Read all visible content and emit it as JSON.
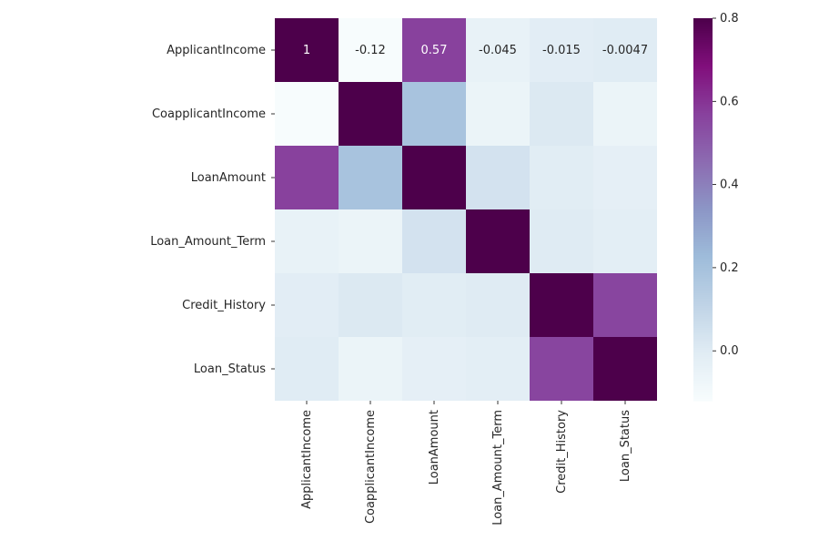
{
  "chart_data": {
    "type": "heatmap",
    "colormap": "BuPu",
    "categories": [
      "ApplicantIncome",
      "CoapplicantIncome",
      "LoanAmount",
      "Loan_Amount_Term",
      "Credit_History",
      "Loan_Status"
    ],
    "matrix": [
      [
        1,
        -0.12,
        0.57,
        -0.045,
        -0.015,
        -0.0047
      ],
      [
        -0.12,
        1,
        0.19,
        -0.06,
        0.01,
        -0.06
      ],
      [
        0.57,
        0.19,
        1,
        0.04,
        -0.01,
        -0.03
      ],
      [
        -0.045,
        -0.06,
        0.04,
        1,
        0.0,
        -0.02
      ],
      [
        -0.015,
        0.01,
        -0.01,
        0.0,
        1,
        0.56
      ],
      [
        -0.0047,
        -0.06,
        -0.03,
        -0.02,
        0.56,
        1
      ]
    ],
    "first_row_labels": [
      "1",
      "-0.12",
      "0.57",
      "-0.045",
      "-0.015",
      "-0.0047"
    ],
    "vmin": -0.12,
    "vmax": 0.8,
    "colorbar_ticks": [
      0.8,
      0.6,
      0.4,
      0.2,
      0.0
    ],
    "colorbar_tick_labels": [
      "0.8",
      "0.6",
      "0.4",
      "0.2",
      "0.0"
    ]
  },
  "colors": {
    "text": "#262626",
    "tick": "#000000",
    "cell_label_light": "#ffffff",
    "cell_label_dark": "#262626"
  }
}
